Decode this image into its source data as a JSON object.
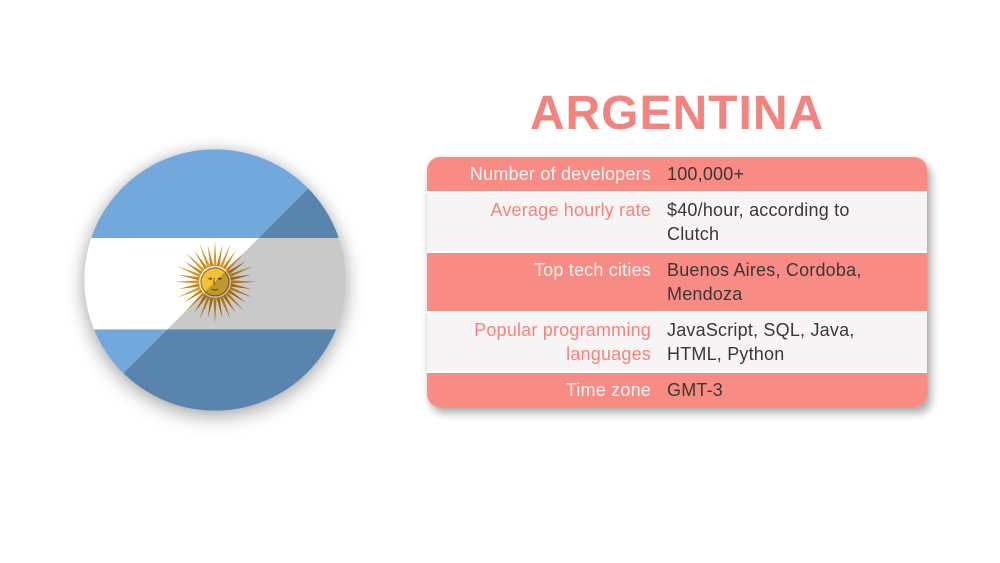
{
  "title": "ARGENTINA",
  "flag": {
    "icon": "argentina-flag-circle-icon",
    "description": "Round flat icon of the flag of Argentina with diagonal long shadow and Sun of May"
  },
  "table": {
    "rows": [
      {
        "label": "Number of developers",
        "value": "100,000+"
      },
      {
        "label": "Average hourly rate",
        "value": "$40/hour, according to Clutch"
      },
      {
        "label": "Top tech cities",
        "value": "Buenos Aires, Cordoba, Mendoza"
      },
      {
        "label": "Popular programming languages",
        "value": "JavaScript, SQL, Java, HTML, Python"
      },
      {
        "label": "Time zone",
        "value": "GMT-3"
      }
    ]
  },
  "colors": {
    "accent_coral": "#F88C85",
    "title_coral": "#F4837E",
    "row_light_bg": "#F6F4F4",
    "value_text": "#3B3737",
    "flag_blue": "#72A8DC",
    "flag_blue_shaded": "#5A84AB",
    "flag_white_shaded": "#C7C5C5",
    "sun_gold": "#F2C135",
    "sun_ray": "#C9811B"
  }
}
